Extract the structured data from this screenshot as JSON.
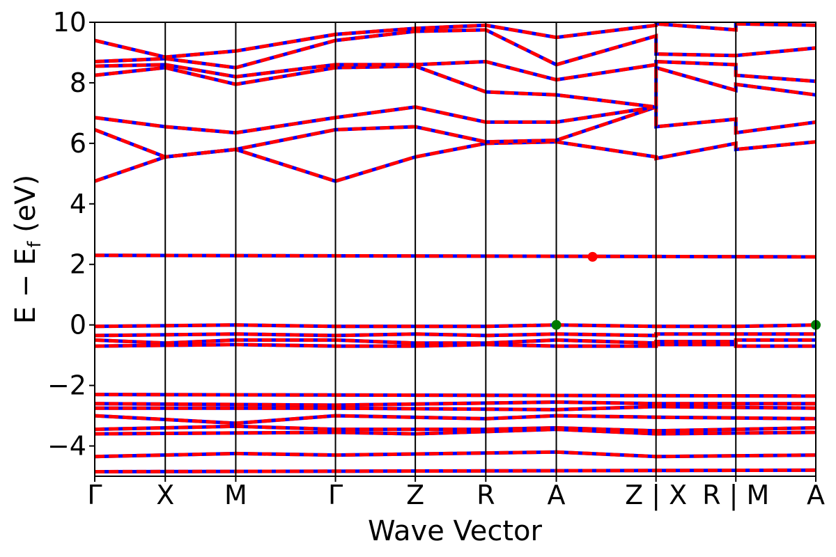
{
  "chart_data": {
    "type": "line",
    "title": "",
    "xlabel": "Wave Vector",
    "ylabel": {
      "main": "E − E",
      "sub": "f",
      "unit": " (eV)"
    },
    "ylim": [
      -5,
      10
    ],
    "yticks": [
      10,
      8,
      6,
      4,
      2,
      0,
      -2,
      -4
    ],
    "ytick_labels": [
      "10",
      "8",
      "6",
      "4",
      "2",
      "0",
      "−2",
      "−4"
    ],
    "grid": false,
    "legend": "none",
    "colors": {
      "spin_up": "#0000ff",
      "spin_down": "#ff0000",
      "vbm": "#007a00",
      "cbm": "#ff0000",
      "axes": "#000000"
    },
    "kpath": [
      {
        "label": "Γ",
        "k": 0.0
      },
      {
        "label": "X",
        "k": 0.5
      },
      {
        "label": "M",
        "k": 1.0
      },
      {
        "label": "Γ",
        "k": 1.707
      },
      {
        "label": "Z",
        "k": 2.273
      },
      {
        "label": "R",
        "k": 2.773
      },
      {
        "label": "A",
        "k": 3.273
      },
      {
        "label": "Z|X",
        "k": 3.98
      },
      {
        "label": "R|M",
        "k": 4.546
      },
      {
        "label": "A",
        "k": 5.113
      }
    ],
    "xtick_display": [
      "Γ",
      "X",
      "M",
      "Γ",
      "Z",
      "R",
      "A",
      "Z | X",
      "R | M",
      "A"
    ],
    "series": [
      {
        "kind": "conduction",
        "k": [
          0,
          0.5,
          1.0,
          1.707,
          2.273,
          2.773,
          3.273,
          3.98,
          3.98,
          4.546,
          4.546,
          5.113
        ],
        "e": [
          4.75,
          5.55,
          5.8,
          4.75,
          5.55,
          6.0,
          6.05,
          5.55,
          5.5,
          6.0,
          5.8,
          6.05
        ]
      },
      {
        "kind": "conduction",
        "k": [
          0,
          0.5,
          1.0,
          1.707,
          2.273,
          2.773,
          3.273,
          3.98,
          3.98,
          4.546,
          4.546,
          5.113
        ],
        "e": [
          6.45,
          5.55,
          5.8,
          6.45,
          6.55,
          6.05,
          6.1,
          7.2,
          6.55,
          6.8,
          6.35,
          6.7
        ]
      },
      {
        "kind": "conduction",
        "k": [
          0,
          0.5,
          1.0,
          1.707,
          2.273,
          2.773,
          3.273,
          3.98
        ],
        "e": [
          6.85,
          6.55,
          6.35,
          6.85,
          7.2,
          6.7,
          6.7,
          7.2
        ]
      },
      {
        "kind": "conduction",
        "k": [
          0,
          0.5,
          1.0,
          1.707,
          2.273,
          2.773,
          3.273,
          3.98,
          3.98,
          4.546,
          4.546,
          5.113
        ],
        "e": [
          8.25,
          8.5,
          7.95,
          8.5,
          8.55,
          7.7,
          7.6,
          7.2,
          8.5,
          7.75,
          7.95,
          7.6
        ]
      },
      {
        "kind": "conduction",
        "k": [
          0,
          0.5,
          1.0,
          1.707,
          2.273,
          2.773,
          3.273,
          3.98,
          3.98,
          4.546,
          4.546,
          5.113
        ],
        "e": [
          8.55,
          8.6,
          8.2,
          8.6,
          8.6,
          8.7,
          8.1,
          8.6,
          8.7,
          8.6,
          8.25,
          8.05
        ]
      },
      {
        "kind": "conduction",
        "k": [
          0,
          0.5,
          1.0,
          1.707,
          2.273,
          2.773,
          3.273,
          3.98,
          3.98,
          4.546,
          4.546,
          5.113
        ],
        "e": [
          8.7,
          8.8,
          8.5,
          9.4,
          9.7,
          9.75,
          8.6,
          9.55,
          8.95,
          8.9,
          8.9,
          9.15
        ]
      },
      {
        "kind": "conduction",
        "k": [
          0,
          0.5,
          1.0,
          1.707,
          2.273,
          2.773,
          3.273,
          3.98,
          3.98,
          4.546,
          4.546,
          5.113
        ],
        "e": [
          9.4,
          8.85,
          9.05,
          9.6,
          9.8,
          9.9,
          9.5,
          9.9,
          9.95,
          9.75,
          9.95,
          9.9
        ]
      },
      {
        "kind": "flat",
        "k": [
          0,
          5.113
        ],
        "e": [
          2.3,
          2.25
        ]
      },
      {
        "kind": "valence",
        "k": [
          0,
          1.0,
          1.707,
          2.273,
          2.773,
          3.273,
          3.98,
          3.98,
          4.546,
          4.546,
          5.113
        ],
        "e": [
          -0.05,
          0.0,
          -0.05,
          -0.05,
          -0.05,
          0.0,
          -0.05,
          -0.05,
          -0.05,
          -0.05,
          0.0
        ]
      },
      {
        "kind": "valence",
        "k": [
          0,
          1.0,
          1.707,
          2.273,
          2.773,
          3.273,
          3.98,
          3.98,
          4.546,
          4.546,
          5.113
        ],
        "e": [
          -0.35,
          -0.3,
          -0.35,
          -0.3,
          -0.35,
          -0.3,
          -0.35,
          -0.3,
          -0.3,
          -0.3,
          -0.3
        ]
      },
      {
        "kind": "valence",
        "k": [
          0,
          0.5,
          1.0,
          1.707,
          2.273,
          2.773,
          3.273,
          3.98,
          3.98,
          4.546,
          4.546,
          5.113
        ],
        "e": [
          -0.5,
          -0.6,
          -0.5,
          -0.5,
          -0.6,
          -0.6,
          -0.5,
          -0.6,
          -0.55,
          -0.55,
          -0.5,
          -0.5
        ]
      },
      {
        "kind": "valence",
        "k": [
          0,
          1.0,
          1.707,
          2.273,
          2.773,
          3.273,
          3.98,
          3.98,
          4.546,
          4.546,
          5.113
        ],
        "e": [
          -0.7,
          -0.65,
          -0.7,
          -0.7,
          -0.65,
          -0.7,
          -0.7,
          -0.65,
          -0.65,
          -0.7,
          -0.7
        ]
      },
      {
        "kind": "valence",
        "k": [
          0,
          5.113
        ],
        "e": [
          -2.3,
          -2.35
        ]
      },
      {
        "kind": "valence",
        "k": [
          0,
          1.707,
          3.273,
          3.98,
          5.113
        ],
        "e": [
          -2.6,
          -2.65,
          -2.55,
          -2.6,
          -2.6
        ]
      },
      {
        "kind": "valence",
        "k": [
          0,
          1.707,
          3.273,
          3.98,
          5.113
        ],
        "e": [
          -2.75,
          -2.75,
          -2.8,
          -2.7,
          -2.75
        ]
      },
      {
        "kind": "valence",
        "k": [
          0,
          1.0,
          1.707,
          2.773,
          3.273,
          3.98,
          5.113
        ],
        "e": [
          -3.0,
          -3.25,
          -3.0,
          -3.1,
          -3.0,
          -3.05,
          -3.1
        ]
      },
      {
        "kind": "valence",
        "k": [
          0,
          1.0,
          1.707,
          2.773,
          3.273,
          3.98,
          5.113
        ],
        "e": [
          -3.45,
          -3.35,
          -3.45,
          -3.45,
          -3.4,
          -3.5,
          -3.4
        ]
      },
      {
        "kind": "valence",
        "k": [
          0,
          1.707,
          2.273,
          3.273,
          3.98,
          5.113
        ],
        "e": [
          -3.6,
          -3.55,
          -3.6,
          -3.45,
          -3.6,
          -3.55
        ]
      },
      {
        "kind": "valence",
        "k": [
          0,
          1.0,
          1.707,
          3.273,
          3.98,
          5.113
        ],
        "e": [
          -4.35,
          -4.25,
          -4.3,
          -4.2,
          -4.35,
          -4.3
        ]
      },
      {
        "kind": "valence",
        "k": [
          0,
          5.113
        ],
        "e": [
          -4.85,
          -4.8
        ]
      }
    ],
    "markers": [
      {
        "name": "vbm",
        "k": 3.273,
        "e": 0.0,
        "color": "#007a00"
      },
      {
        "name": "vbm",
        "k": 5.113,
        "e": 0.0,
        "color": "#007a00"
      },
      {
        "name": "cbm",
        "k": 3.53,
        "e": 2.25,
        "color": "#ff0000"
      }
    ]
  }
}
